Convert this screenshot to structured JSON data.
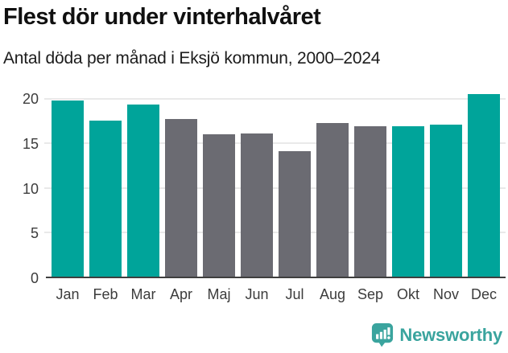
{
  "header": {
    "title": "Flest dör under vinterhalvåret",
    "subtitle": "Antal döda per månad i Eksjö kommun, 2000–2024"
  },
  "chart_data": {
    "type": "bar",
    "title": "Flest dör under vinterhalvåret",
    "subtitle": "Antal döda per månad i Eksjö kommun, 2000–2024",
    "categories": [
      "Jan",
      "Feb",
      "Mar",
      "Apr",
      "Maj",
      "Jun",
      "Jul",
      "Aug",
      "Sep",
      "Okt",
      "Nov",
      "Dec"
    ],
    "values": [
      19.8,
      17.6,
      19.4,
      17.8,
      16.0,
      16.1,
      14.1,
      17.3,
      16.9,
      16.9,
      17.1,
      20.6
    ],
    "highlighted": [
      true,
      true,
      true,
      false,
      false,
      false,
      false,
      false,
      false,
      true,
      true,
      true
    ],
    "highlight_meaning": "winter half-year months (Okt–Mar) in teal, summer half-year (Apr–Sep) in gray",
    "yticks": [
      0,
      5,
      10,
      15,
      20
    ],
    "ylim": [
      0,
      21.2
    ],
    "grid": true,
    "legend_position": "none",
    "xlabel": "",
    "ylabel": "",
    "colors": {
      "highlight": "#00a49a",
      "base": "#6b6b72",
      "gridline": "#e9e9e9",
      "axis": "#3f3f3f",
      "tick_text": "#3c3c3c"
    }
  },
  "footer": {
    "brand": "Newsworthy",
    "brand_color": "#3aa49e",
    "logo_icon": "newsworthy-chart-bubble-icon"
  }
}
